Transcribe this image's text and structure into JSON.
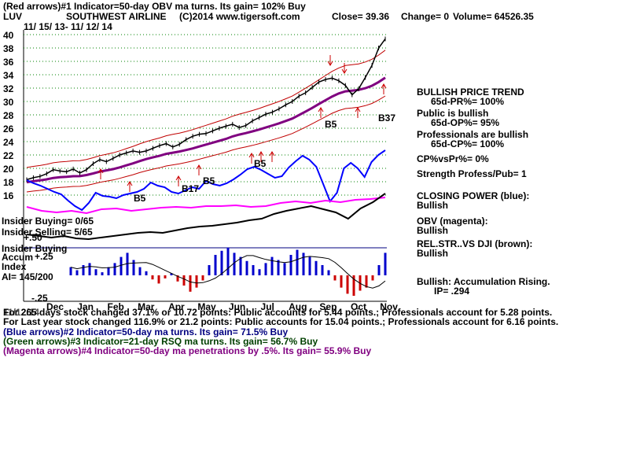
{
  "header": {
    "line1": "(Red arrows)#1 Indicator=50-day OBV ma turns. Its gain= 102% Buy",
    "ticker": "LUV",
    "company": "SOUTHWEST AIRLINE",
    "copyright": "(C)2014 www.tigersoft.com",
    "close": "Close= 39.36",
    "change": "Change= 0",
    "volume": "Volume= 64526.35",
    "date_range": "11/ 15/ 13- 11/ 12/ 14"
  },
  "right_panel": [
    "BULLISH PRICE TREND",
    "65d-PR%= 100%",
    "Public is bullish",
    "65d-OP%= 95%",
    "Professionals are bullish",
    "65d-CP%= 100%",
    "CP%vsPr%= 0%",
    "Strength Profess/Pub= 1",
    "CLOSING POWER (blue):",
    "Bullish",
    "OBV (magenta):",
    "Bullish",
    "REL.STR..VS DJI (brown):",
    "Bullish",
    "Bullish: Accumulation Rising.",
    "IP= .294"
  ],
  "left_labels": {
    "insider_buying_count": "Insider Buying= 0/65",
    "insider_selling_count": "Insider Selling= 5/65",
    "plus50": "+.50",
    "insider_buying": "Insider Buying",
    "accum": "Accum",
    "plus25": "+.25",
    "index": "Index",
    "ai": "AI= 145/200",
    "minus25": "-.25"
  },
  "footer": [
    "For 265 days stock changed 37.1% or 10.72 points: Public accounts for 5.44 points.; Professionals account for 5.28 points.",
    "For Last year stock changed 116.9% or 21.2 points: Public accounts for 15.04 points.; Professionals account for 6.16 points.",
    "(Blue arrows)#2 Indicator=50-day ma turns. Its gain= 71.5% Buy",
    "(Green arrows)#3 Indicator=21-day RSQ ma turns. Its gain= 56.7% Buy",
    "(Magenta arrows)#4 Indicator=50-day ma penetrations by .5%. Its gain= 55.9% Buy"
  ],
  "footer_overlay": "11/12/14",
  "colors": {
    "price": "#000000",
    "band": "#c00000",
    "ma": "#800080",
    "closing_power": "#0000ff",
    "obv": "#ff00ff",
    "rel_str": "#000000",
    "accum_pos": "#0000cc",
    "accum_neg": "#cc0000",
    "arrow": "#cc0000",
    "grid": "#008000"
  },
  "chart_data": {
    "type": "line",
    "ylim": [
      16,
      40
    ],
    "y_ticks": [
      16,
      18,
      20,
      22,
      24,
      26,
      28,
      30,
      32,
      34,
      36,
      38,
      40
    ],
    "x_ticks": [
      "Dec",
      "Jan",
      "Feb",
      "Mar",
      "Apr",
      "May",
      "Jun",
      "Jul",
      "Aug",
      "Sep",
      "Oct",
      "Nov"
    ],
    "price": {
      "name": "LUV",
      "values": [
        18.3,
        18.6,
        18.8,
        19.2,
        19.8,
        19.6,
        19.5,
        19.9,
        19.3,
        19.8,
        20.7,
        21.3,
        21.0,
        21.5,
        22.0,
        22.3,
        22.6,
        22.4,
        22.6,
        23.0,
        23.4,
        23.7,
        23.2,
        23.6,
        24.3,
        24.8,
        25.1,
        25.2,
        25.6,
        26.0,
        26.3,
        26.6,
        26.1,
        26.4,
        27.1,
        27.6,
        28.1,
        28.4,
        28.9,
        29.5,
        30.0,
        30.8,
        31.3,
        32.1,
        32.9,
        33.3,
        33.5,
        33.1,
        32.4,
        31.0,
        31.9,
        33.6,
        35.4,
        38.0,
        39.36
      ]
    },
    "annotations": [
      "B5",
      "B17",
      "B5",
      "B5",
      "B5",
      "B5",
      "B37"
    ]
  }
}
